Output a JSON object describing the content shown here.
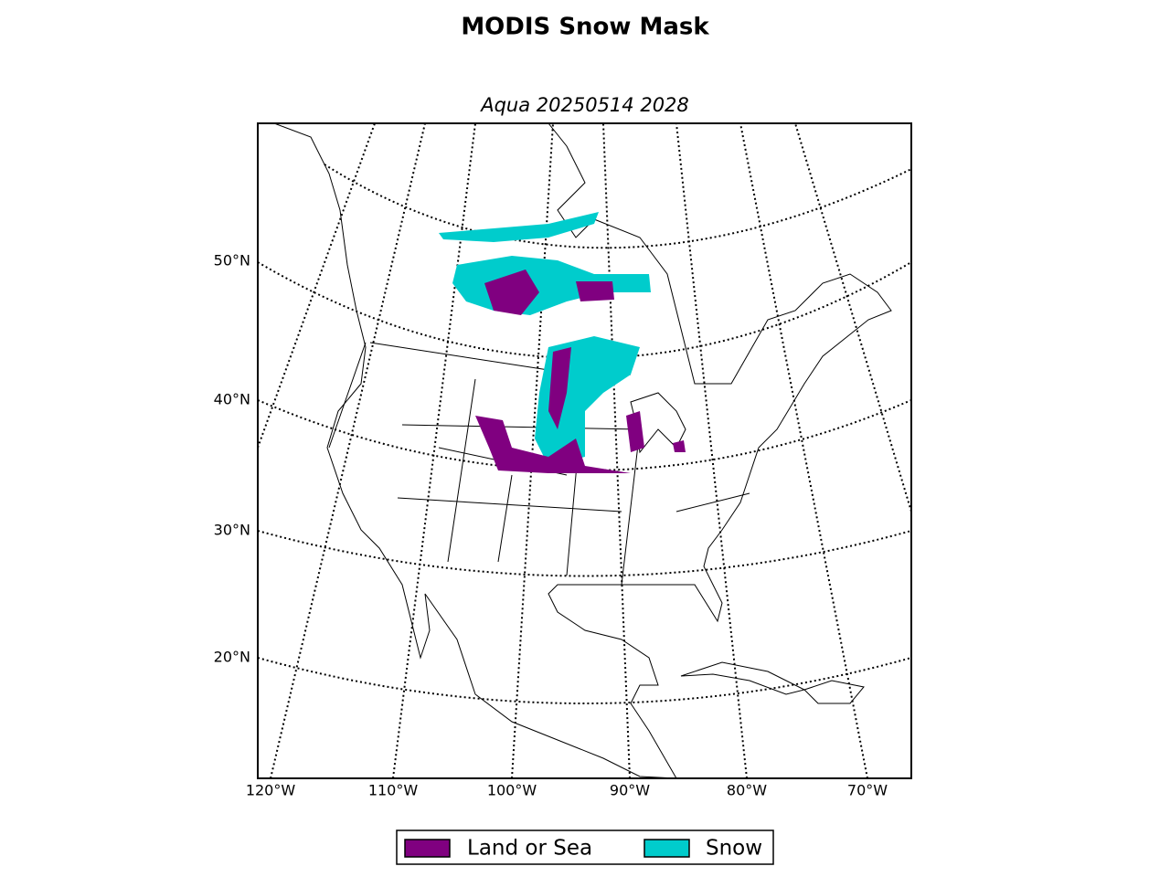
{
  "title": "MODIS Snow Mask",
  "subtitle": "Aqua 20250514 2028",
  "latitude_labels": [
    "50°N",
    "40°N",
    "30°N",
    "20°N"
  ],
  "longitude_labels": [
    "120°W",
    "110°W",
    "100°W",
    "90°W",
    "80°W",
    "70°W"
  ],
  "legend": [
    {
      "label": "Land or Sea",
      "color": "#800080"
    },
    {
      "label": "Snow",
      "color": "#00cccc"
    }
  ]
}
